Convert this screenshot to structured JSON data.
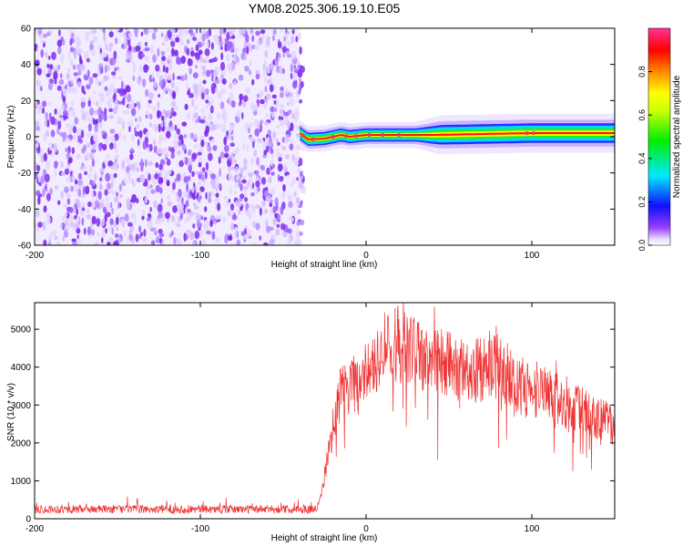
{
  "title": "YM08.2025.306.19.10.E05",
  "chart_data": [
    {
      "type": "heatmap",
      "name": "spectrogram",
      "xlabel": "Height of straight line (km)",
      "ylabel": "Frequency (Hz)",
      "xlim": [
        -200,
        150
      ],
      "ylim": [
        -60,
        60
      ],
      "xticks": [
        -200,
        -100,
        0,
        100
      ],
      "xtick_labels": [
        "-200",
        "-100",
        "0",
        "100"
      ],
      "yticks": [
        -60,
        -40,
        -20,
        0,
        20,
        40,
        60
      ],
      "ytick_labels": [
        "-60",
        "-40",
        "-20",
        "0",
        "20",
        "40",
        "60"
      ],
      "noise_region_x": [
        -200,
        -40
      ],
      "signal_ridge": [
        {
          "x": -40,
          "f": 2.0
        },
        {
          "x": -35,
          "f": -1.5
        },
        {
          "x": -25,
          "f": -1.0
        },
        {
          "x": -15,
          "f": 1.0
        },
        {
          "x": -10,
          "f": 0.0
        },
        {
          "x": 0,
          "f": 1.0
        },
        {
          "x": 40,
          "f": 1.0
        },
        {
          "x": 100,
          "f": 2.0
        },
        {
          "x": 150,
          "f": 2.0
        }
      ],
      "signal_band_halfwidth_hz": [
        {
          "x": -40,
          "w": 4
        },
        {
          "x": 30,
          "w": 4
        },
        {
          "x": 45,
          "w": 6
        },
        {
          "x": 150,
          "w": 6
        }
      ],
      "colorbar": {
        "label": "Normalized spectral amplitude",
        "range": [
          0.0,
          1.0
        ],
        "ticks": [
          0.0,
          0.2,
          0.4,
          0.6,
          0.8
        ],
        "tick_labels": [
          "0.0",
          "0.2",
          "0.4",
          "0.6",
          "0.8"
        ]
      }
    },
    {
      "type": "line",
      "name": "snr",
      "xlabel": "Height of straight line (km)",
      "ylabel": "SNR (10 * v/v)",
      "xlim": [
        -200,
        150
      ],
      "ylim": [
        0,
        5700
      ],
      "xticks": [
        -200,
        -100,
        0,
        100
      ],
      "xtick_labels": [
        "-200",
        "-100",
        "0",
        "100"
      ],
      "yticks": [
        0,
        1000,
        2000,
        3000,
        4000,
        5000
      ],
      "ytick_labels": [
        "0",
        "1000",
        "2000",
        "3000",
        "4000",
        "5000"
      ],
      "color": "#ee3333",
      "envelope": [
        {
          "x": -200,
          "y": 250
        },
        {
          "x": -30,
          "y": 250
        },
        {
          "x": -27,
          "y": 600
        },
        {
          "x": -22,
          "y": 2000
        },
        {
          "x": -15,
          "y": 3400
        },
        {
          "x": -5,
          "y": 3500
        },
        {
          "x": 5,
          "y": 4200
        },
        {
          "x": 15,
          "y": 4600
        },
        {
          "x": 25,
          "y": 4500
        },
        {
          "x": 35,
          "y": 4200
        },
        {
          "x": 50,
          "y": 4100
        },
        {
          "x": 65,
          "y": 3900
        },
        {
          "x": 80,
          "y": 4000
        },
        {
          "x": 95,
          "y": 3400
        },
        {
          "x": 110,
          "y": 3400
        },
        {
          "x": 120,
          "y": 2950
        },
        {
          "x": 135,
          "y": 2800
        },
        {
          "x": 150,
          "y": 2400
        }
      ]
    }
  ]
}
